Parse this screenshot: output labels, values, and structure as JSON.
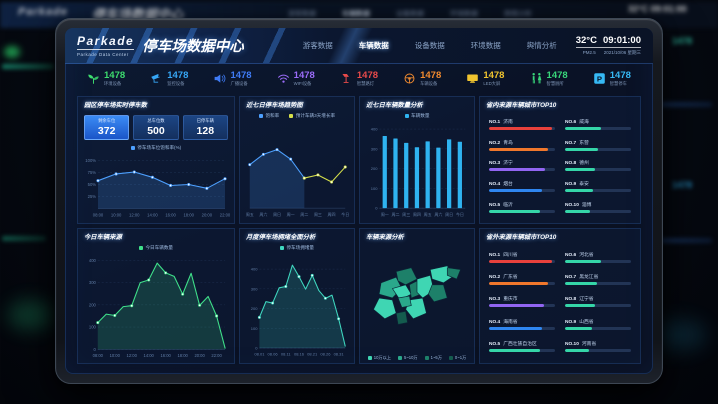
{
  "header": {
    "logo": "Parkade",
    "title": "停车场数据中心",
    "subtitle": "Parkade Data Center",
    "nav": [
      {
        "label": "游客数据",
        "active": false
      },
      {
        "label": "车辆数据",
        "active": true
      },
      {
        "label": "设备数据",
        "active": false
      },
      {
        "label": "环境数据",
        "active": false
      },
      {
        "label": "舆情分析",
        "active": false
      }
    ],
    "temperature": "32°C",
    "time": "09:01:00",
    "pm": "PM2.5",
    "date": "2021/10/06 星期三"
  },
  "stats": [
    {
      "icon": "plant-icon",
      "label": "环境设备",
      "value": "1478",
      "color": "#3ddc6e"
    },
    {
      "icon": "camera-icon",
      "label": "监控设备",
      "value": "1478",
      "color": "#36a6f5"
    },
    {
      "icon": "speaker-icon",
      "label": "广播设备",
      "value": "1478",
      "color": "#3f7bf5"
    },
    {
      "icon": "wifi-icon",
      "label": "WIFI设备",
      "value": "1478",
      "color": "#9a6cf8"
    },
    {
      "icon": "streetlamp-icon",
      "label": "智慧路灯",
      "value": "1478",
      "color": "#e84a4a"
    },
    {
      "icon": "steering-wheel-icon",
      "label": "车辆设备",
      "value": "1478",
      "color": "#f08a2f"
    },
    {
      "icon": "led-screen-icon",
      "label": "LED大屏",
      "value": "1478",
      "color": "#f0c42f"
    },
    {
      "icon": "restroom-icon",
      "label": "智慧厕所",
      "value": "1478",
      "color": "#38d67a"
    },
    {
      "icon": "parking-icon",
      "label": "智慧停车",
      "value": "1478",
      "color": "#36b9f5"
    }
  ],
  "panels": {
    "realtime": {
      "title": "园区停车场实时停车数",
      "boxes": [
        {
          "label": "剩余车位",
          "value": "372"
        },
        {
          "label": "总车位数",
          "value": "500"
        },
        {
          "label": "已停车辆",
          "value": "128"
        }
      ],
      "legend": "停车场车位饱和率(%)"
    },
    "trend": {
      "title": "近七日停车场趋势图",
      "legend1": "饱和率",
      "legend2": "预计车辆3天增长率"
    },
    "weekly": {
      "title": "近七日车辆数量分析",
      "legend": "车辆数量"
    },
    "provinceTop": {
      "title": "省内来源车辆城市TOP10",
      "items": [
        {
          "rank": "NO.1",
          "name": "济南",
          "pct": 96,
          "color": "#e8413c"
        },
        {
          "rank": "NO.2",
          "name": "青岛",
          "pct": 90,
          "color": "#f0772c"
        },
        {
          "rank": "NO.3",
          "name": "济宁",
          "pct": 85,
          "color": "#9165f2"
        },
        {
          "rank": "NO.4",
          "name": "烟台",
          "pct": 81,
          "color": "#2f86f0"
        },
        {
          "rank": "NO.5",
          "name": "临沂",
          "pct": 78,
          "color": "#35d6a8"
        },
        {
          "rank": "NO.6",
          "name": "威海",
          "pct": 55,
          "color": "#35d6a8"
        },
        {
          "rank": "NO.7",
          "name": "东营",
          "pct": 50,
          "color": "#35d6a8"
        },
        {
          "rank": "NO.8",
          "name": "德州",
          "pct": 46,
          "color": "#35d6a8"
        },
        {
          "rank": "NO.9",
          "name": "泰安",
          "pct": 42,
          "color": "#35d6a8"
        },
        {
          "rank": "NO.10",
          "name": "淄博",
          "pct": 38,
          "color": "#35d6a8"
        }
      ]
    },
    "todaySource": {
      "title": "今日车辆来源",
      "legend": "今日车辆数量"
    },
    "monthly": {
      "title": "月度停车场拥堵全面分析",
      "legend": "停车场拥堵量"
    },
    "mapPanel": {
      "title": "车辆来源分析",
      "legend": [
        {
          "label": "10万以上",
          "color": "#3fd6b3"
        },
        {
          "label": "5~10万",
          "color": "#2aa88b"
        },
        {
          "label": "1~5万",
          "color": "#1d8069"
        },
        {
          "label": "0~1万",
          "color": "#145c4e"
        }
      ]
    },
    "outProvinceTop": {
      "title": "省外来源车辆城市TOP10",
      "items": [
        {
          "rank": "NO.1",
          "name": "四川省",
          "pct": 96,
          "color": "#e8413c"
        },
        {
          "rank": "NO.2",
          "name": "广东省",
          "pct": 89,
          "color": "#f0772c"
        },
        {
          "rank": "NO.3",
          "name": "重庆市",
          "pct": 84,
          "color": "#9165f2"
        },
        {
          "rank": "NO.4",
          "name": "海南省",
          "pct": 80,
          "color": "#2f86f0"
        },
        {
          "rank": "NO.5",
          "name": "广西壮族自治区",
          "pct": 77,
          "color": "#35d6a8"
        },
        {
          "rank": "NO.6",
          "name": "河北省",
          "pct": 54,
          "color": "#35d6a8"
        },
        {
          "rank": "NO.7",
          "name": "黑龙江省",
          "pct": 49,
          "color": "#35d6a8"
        },
        {
          "rank": "NO.8",
          "name": "辽宁省",
          "pct": 45,
          "color": "#35d6a8"
        },
        {
          "rank": "NO.9",
          "name": "山西省",
          "pct": 41,
          "color": "#35d6a8"
        },
        {
          "rank": "NO.10",
          "name": "河南省",
          "pct": 37,
          "color": "#35d6a8"
        }
      ]
    }
  },
  "chart_data": [
    {
      "id": "saturation",
      "type": "line",
      "x": [
        "08:00",
        "10:00",
        "12:00",
        "14:00",
        "16:00",
        "18:00",
        "20:00",
        "22:00"
      ],
      "series": [
        {
          "name": "停车场车位饱和率(%)",
          "color": "#4da0ff",
          "fill": true,
          "values": [
            58,
            72,
            76,
            65,
            48,
            50,
            42,
            62
          ]
        }
      ],
      "ylim": [
        0,
        100
      ],
      "yticks": [
        25,
        50,
        75,
        100
      ],
      "yfmt": "pct",
      "dots": "all",
      "title": "园区停车场实时停车数",
      "legend_position": "top",
      "grid": true
    },
    {
      "id": "trend",
      "type": "line",
      "x": [
        "周五",
        "周六",
        "周日",
        "周一",
        "周二",
        "周三",
        "周四",
        "今日"
      ],
      "series": [
        {
          "name": "饱和率",
          "color": "#4da0ff",
          "fill": true,
          "values": [
            55,
            68,
            74,
            62,
            38,
            null,
            null,
            null
          ]
        },
        {
          "name": "预计车辆3天增长率",
          "color": "#d6e04a",
          "fill": false,
          "values": [
            null,
            null,
            null,
            null,
            38,
            42,
            33,
            52
          ]
        }
      ],
      "ylim": [
        0,
        100
      ],
      "yticks": [],
      "dots": "all",
      "title": "近七日停车场趋势图",
      "legend_position": "top",
      "grid": false
    },
    {
      "id": "weekly",
      "type": "bar",
      "x": [
        "周一",
        "周二",
        "周三",
        "周四",
        "周五",
        "周六",
        "周日",
        "今日"
      ],
      "series": [
        {
          "name": "车辆数量",
          "color": "#2fb3f0",
          "values": [
            365,
            352,
            330,
            308,
            338,
            306,
            348,
            336
          ]
        }
      ],
      "ylim": [
        0,
        400
      ],
      "yticks": [
        0,
        100,
        200,
        300,
        400
      ],
      "title": "近七日车辆数量分析",
      "legend_position": "top",
      "grid": true
    },
    {
      "id": "todaySource",
      "type": "line",
      "x": [
        "08:00",
        "10:00",
        "12:00",
        "14:00",
        "16:00",
        "18:00",
        "20:00",
        "22:00"
      ],
      "xEvery": 2,
      "series": [
        {
          "name": "今日车辆数量",
          "color": "#3fe08a",
          "fill": true,
          "values": [
            120,
            158,
            152,
            192,
            196,
            300,
            312,
            388,
            344,
            328,
            248,
            342,
            198,
            238,
            150,
            5
          ]
        }
      ],
      "ylim": [
        0,
        400
      ],
      "yticks": [
        0,
        100,
        200,
        300,
        400
      ],
      "dots": "alt",
      "title": "今日车辆来源",
      "legend_position": "top",
      "grid": true
    },
    {
      "id": "monthly",
      "type": "line",
      "x": [
        "08.01",
        "08.06",
        "08.11",
        "08.16",
        "08.21",
        "08.26",
        "08.31"
      ],
      "xEvery": 2,
      "series": [
        {
          "name": "停车场拥堵量",
          "color": "#3fd8c0",
          "fill": true,
          "values": [
            155,
            235,
            228,
            305,
            312,
            420,
            362,
            298,
            368,
            292,
            252,
            268,
            148,
            10
          ]
        }
      ],
      "ylim": [
        0,
        440
      ],
      "yticks": [
        0,
        100,
        200,
        300,
        400
      ],
      "dots": "alt",
      "title": "月度停车场拥堵全面分析",
      "legend_position": "top",
      "grid": true
    }
  ]
}
